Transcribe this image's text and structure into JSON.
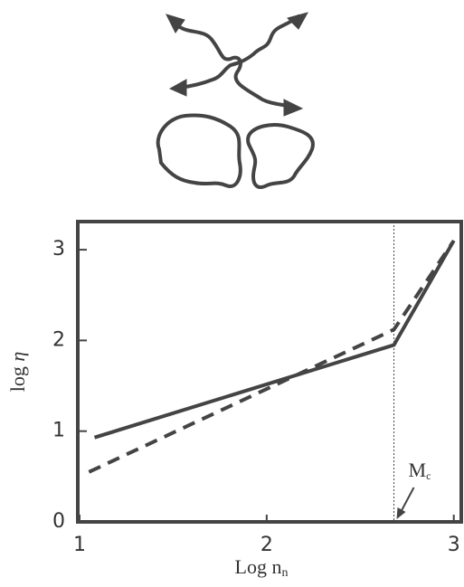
{
  "chart_data": {
    "type": "line",
    "x_label": {
      "text": "Log n",
      "sub": "n"
    },
    "y_label": {
      "text": "log ",
      "symbol": "η"
    },
    "annotation": {
      "text": "M",
      "sub": "c"
    },
    "reference_x": 2.68,
    "xlim": [
      1,
      3.04
    ],
    "xticks": [
      1,
      2,
      3
    ],
    "ylim": [
      0,
      3.31
    ],
    "yticks": [
      0,
      1,
      2,
      3
    ],
    "series": [
      {
        "color": "#444",
        "dash": false,
        "x": [
          1.08,
          2.68,
          3.0
        ],
        "values": [
          0.93,
          1.95,
          3.1
        ]
      },
      {
        "color": "#444",
        "dash": true,
        "x": [
          1.05,
          2.68,
          3.0
        ],
        "values": [
          0.55,
          2.12,
          3.1
        ]
      }
    ]
  }
}
